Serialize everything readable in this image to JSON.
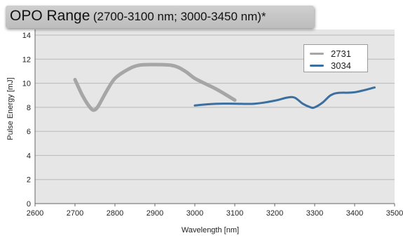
{
  "title": {
    "main": "OPO Range",
    "sub": "(2700-3100 nm; 3000-3450 nm)*"
  },
  "colors": {
    "background": "#e6e6e6",
    "grid": "#b8b8b8"
  },
  "chart_data": {
    "type": "line",
    "title": "OPO Range (2700-3100 nm; 3000-3450 nm)*",
    "xlabel": "Wavelength [nm]",
    "ylabel": "Pulse Energy [mJ]",
    "xlim": [
      2600,
      3500
    ],
    "ylim": [
      0,
      14
    ],
    "xticks": [
      2600,
      2700,
      2800,
      2900,
      3000,
      3100,
      3200,
      3300,
      3400,
      3500
    ],
    "yticks": [
      0,
      2,
      4,
      6,
      8,
      10,
      12,
      14
    ],
    "grid": true,
    "legend_position": "top-right",
    "series": [
      {
        "name": "2731",
        "color": "#a6a6a6",
        "x": [
          2700,
          2720,
          2740,
          2750,
          2760,
          2780,
          2800,
          2830,
          2860,
          2900,
          2940,
          2960,
          2980,
          3000,
          3030,
          3060,
          3100
        ],
        "y": [
          10.3,
          8.9,
          7.9,
          7.8,
          8.2,
          9.4,
          10.4,
          11.1,
          11.5,
          11.55,
          11.5,
          11.3,
          10.9,
          10.4,
          9.9,
          9.4,
          8.6
        ]
      },
      {
        "name": "3034",
        "color": "#3a6fa0",
        "x": [
          3000,
          3030,
          3060,
          3100,
          3150,
          3200,
          3230,
          3250,
          3270,
          3290,
          3300,
          3320,
          3340,
          3360,
          3400,
          3450
        ],
        "y": [
          8.15,
          8.25,
          8.3,
          8.3,
          8.3,
          8.55,
          8.8,
          8.8,
          8.3,
          8.0,
          8.0,
          8.4,
          9.0,
          9.2,
          9.25,
          9.65
        ]
      }
    ]
  }
}
